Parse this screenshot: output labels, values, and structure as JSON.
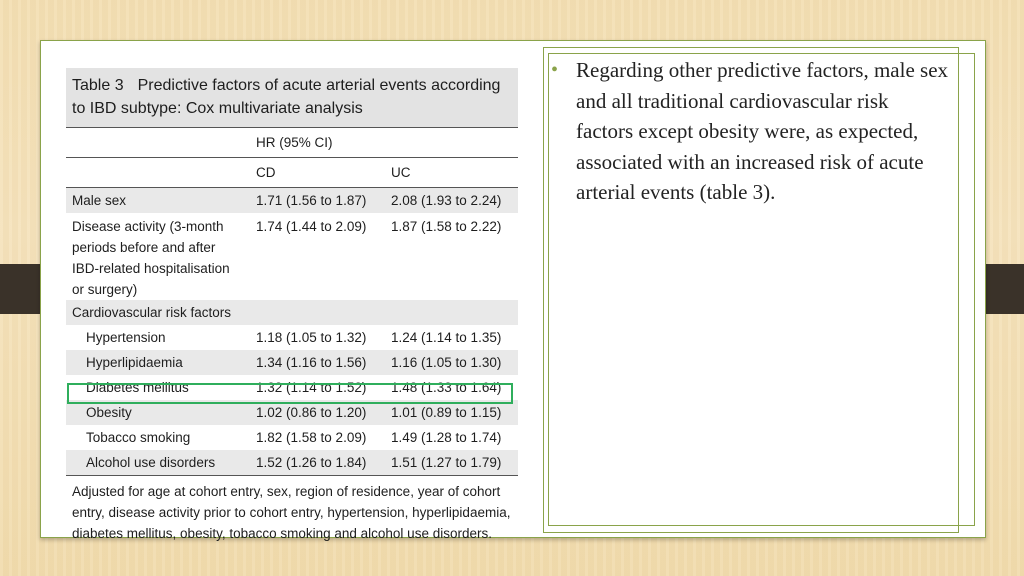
{
  "table": {
    "label": "Table 3",
    "title": "Predictive factors of acute arterial events according to IBD subtype: Cox multivariate analysis",
    "hr_header": "HR (95% CI)",
    "col_cd": "CD",
    "col_uc": "UC",
    "rows": [
      {
        "label": "Male sex",
        "cd": "1.71 (1.56 to 1.87)",
        "uc": "2.08 (1.93 to 2.24)"
      },
      {
        "label": "Disease activity (3-month periods before and after IBD-related hospitalisation or surgery)",
        "cd": "1.74 (1.44 to 2.09)",
        "uc": "1.87 (1.58 to 2.22)"
      },
      {
        "label": "Cardiovascular risk factors"
      },
      {
        "label": "Hypertension",
        "cd": "1.18 (1.05 to 1.32)",
        "uc": "1.24 (1.14 to 1.35)"
      },
      {
        "label": "Hyperlipidaemia",
        "cd": "1.34 (1.16 to 1.56)",
        "uc": "1.16 (1.05 to 1.30)"
      },
      {
        "label": "Diabetes mellitus",
        "cd": "1.32 (1.14 to 1.52)",
        "uc": "1.48 (1.33 to 1.64)"
      },
      {
        "label": "Obesity",
        "cd": "1.02 (0.86 to 1.20)",
        "uc": "1.01 (0.89 to 1.15)"
      },
      {
        "label": "Tobacco smoking",
        "cd": "1.82 (1.58 to 2.09)",
        "uc": "1.49 (1.28 to 1.74)"
      },
      {
        "label": "Alcohol use disorders",
        "cd": "1.52 (1.26 to 1.84)",
        "uc": "1.51 (1.27 to 1.79)"
      }
    ],
    "footnote": "Adjusted for age at cohort entry, sex, region of residence, year of cohort entry, disease activity prior to cohort entry, hypertension, hyperlipidaemia, diabetes mellitus, obesity, tobacco smoking and alcohol use disorders."
  },
  "bullet": {
    "text": "Regarding other predictive factors, male sex and all traditional cardiovascular risk factors except obesity were, as expected, associated with an increased risk of acute arterial events (table 3)."
  },
  "colors": {
    "accent": "#8aa34a",
    "highlight": "#2fae5c"
  }
}
